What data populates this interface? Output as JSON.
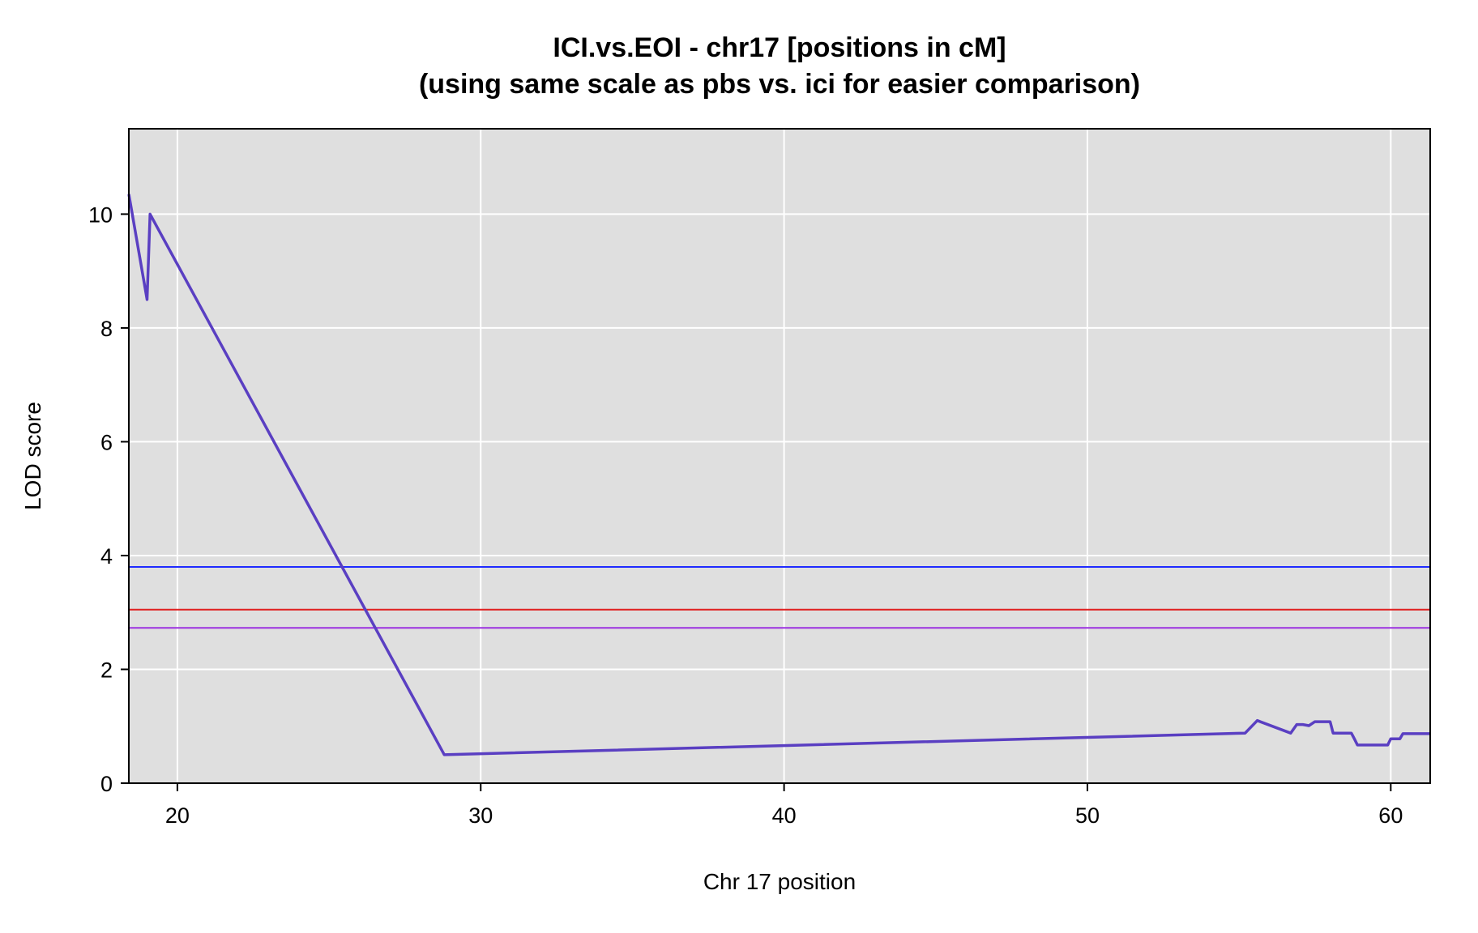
{
  "chart_data": {
    "type": "line",
    "title": "ICI.vs.EOI - chr17 [positions in cM]",
    "subtitle": "(using same scale as pbs  vs. ici for easier comparison)",
    "xlabel": "Chr 17 position",
    "ylabel": "LOD score",
    "xlim": [
      18.4,
      61.3
    ],
    "ylim": [
      0,
      11.5
    ],
    "x_ticks": [
      20,
      30,
      40,
      50,
      60
    ],
    "y_ticks": [
      0,
      2,
      4,
      6,
      8,
      10
    ],
    "grid": true,
    "background_color": "#dfdfdf",
    "grid_color": "#ffffff",
    "series": [
      {
        "color": "#5a3fc2",
        "x": [
          18.4,
          19.0,
          19.1,
          28.8,
          55.2,
          55.6,
          56.7,
          56.9,
          57.1,
          57.3,
          57.5,
          57.6,
          58.0,
          58.1,
          58.7,
          58.8,
          58.9,
          59.9,
          60.0,
          60.3,
          60.4,
          61.3
        ],
        "y": [
          10.35,
          8.5,
          10.0,
          0.5,
          0.88,
          1.1,
          0.88,
          1.03,
          1.03,
          1.01,
          1.08,
          1.08,
          1.08,
          0.88,
          0.88,
          0.78,
          0.67,
          0.67,
          0.78,
          0.78,
          0.87,
          0.87
        ]
      }
    ],
    "thresholds": [
      {
        "value": 3.8,
        "color": "#1f2bff"
      },
      {
        "value": 3.05,
        "color": "#e02020"
      },
      {
        "value": 2.73,
        "color": "#9b30e0"
      }
    ]
  }
}
